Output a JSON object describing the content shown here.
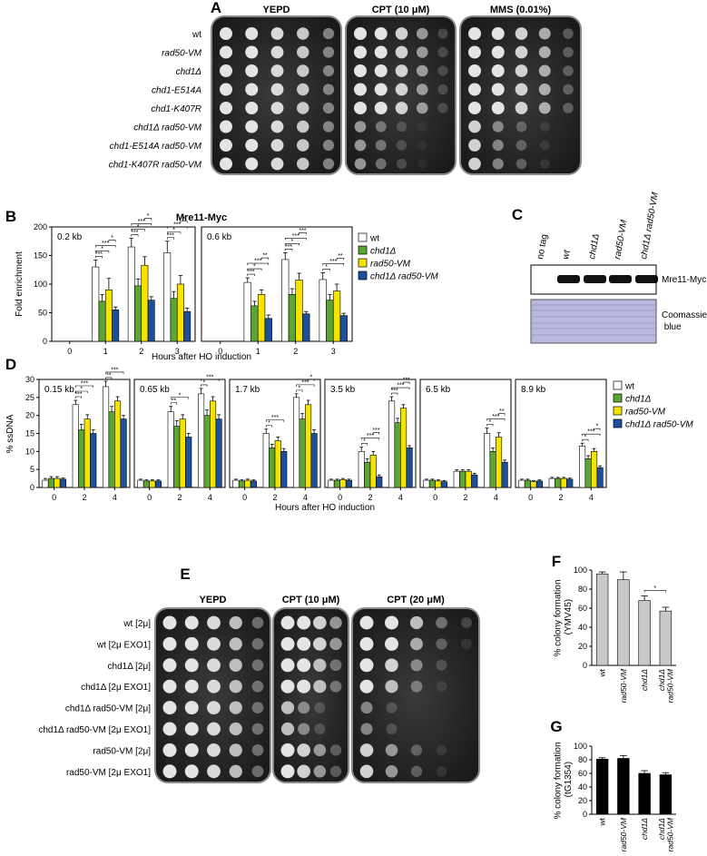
{
  "figure_labels": [
    "A",
    "B",
    "C",
    "D",
    "E",
    "F",
    "G"
  ],
  "spot_assay_a": {
    "conditions": [
      "YEPD",
      "CPT (10 μM)",
      "MMS (0.01%)"
    ],
    "strains": [
      "wt",
      "rad50-VM",
      "chd1Δ",
      "chd1-E514A",
      "chd1-K407R",
      "chd1Δ rad50-VM",
      "chd1-E514A rad50-VM",
      "chd1-K407R rad50-VM"
    ]
  },
  "blot_c": {
    "lanes": [
      "no tag",
      "wt",
      "chd1Δ",
      "rad50-VM",
      "chd1Δ rad50-VM"
    ],
    "bands": [
      "Mre11-Myc",
      "Coomassie blue"
    ]
  },
  "spot_assay_e": {
    "conditions": [
      "YEPD",
      "CPT (10 μM)",
      "CPT (20 μM)"
    ],
    "strains": [
      "wt [2μ]",
      "wt [2μ EXO1]",
      "chd1Δ [2μ]",
      "chd1Δ [2μ EXO1]",
      "chd1Δ rad50-VM [2μ]",
      "chd1Δ rad50-VM [2μ EXO1]",
      "rad50-VM [2μ]",
      "rad50-VM [2μ EXO1]"
    ]
  },
  "chart_data": [
    {
      "type": "bar",
      "title": "Mre11-Myc",
      "panel_label": "0.2 kb",
      "y_label": "Fold enrichment",
      "x_label": "Hours after HO induction",
      "categories": [
        "0",
        "1",
        "2",
        "3"
      ],
      "series": [
        {
          "name": "wt",
          "color": "#ffffff",
          "values": [
            null,
            130,
            165,
            155
          ],
          "errors": [
            null,
            12,
            15,
            20
          ]
        },
        {
          "name": "chd1Δ",
          "color": "#5ba532",
          "values": [
            null,
            70,
            97,
            75
          ],
          "errors": [
            null,
            12,
            12,
            12
          ]
        },
        {
          "name": "rad50-VM",
          "color": "#f6e400",
          "values": [
            null,
            90,
            133,
            100
          ],
          "errors": [
            null,
            20,
            15,
            15
          ]
        },
        {
          "name": "chd1Δ rad50-VM",
          "color": "#1d4f9c",
          "values": [
            null,
            55,
            72,
            52
          ],
          "errors": [
            null,
            5,
            6,
            6
          ]
        }
      ],
      "ylim": [
        0,
        200
      ],
      "yticks": [
        0,
        50,
        100,
        150,
        200
      ],
      "legend": "right",
      "significance": [
        {
          "category": 1,
          "series": [
            0,
            1
          ],
          "label": "***"
        },
        {
          "category": 1,
          "series": [
            0,
            2
          ],
          "label": "*"
        },
        {
          "category": 1,
          "series": [
            0,
            3
          ],
          "label": "***"
        },
        {
          "category": 1,
          "series": [
            2,
            3
          ],
          "label": "*"
        },
        {
          "category": 2,
          "series": [
            0,
            1
          ],
          "label": "***"
        },
        {
          "category": 2,
          "series": [
            0,
            2
          ],
          "label": "*"
        },
        {
          "category": 2,
          "series": [
            0,
            3
          ],
          "label": "***"
        },
        {
          "category": 2,
          "series": [
            2,
            3
          ],
          "label": "*"
        },
        {
          "category": 3,
          "series": [
            0,
            1
          ],
          "label": "***"
        },
        {
          "category": 3,
          "series": [
            0,
            2
          ],
          "label": "*"
        },
        {
          "category": 3,
          "series": [
            0,
            3
          ],
          "label": "***"
        },
        {
          "category": 3,
          "series": [
            2,
            3
          ],
          "label": "*"
        }
      ]
    },
    {
      "type": "bar",
      "panel_label": "0.6 kb",
      "categories": [
        "0",
        "1",
        "2",
        "3"
      ],
      "series": [
        {
          "color": "#ffffff",
          "values": [
            null,
            103,
            143,
            108
          ],
          "errors": [
            null,
            8,
            12,
            12
          ]
        },
        {
          "color": "#5ba532",
          "values": [
            null,
            62,
            82,
            72
          ],
          "errors": [
            null,
            8,
            10,
            10
          ]
        },
        {
          "color": "#f6e400",
          "values": [
            null,
            82,
            107,
            88
          ],
          "errors": [
            null,
            8,
            12,
            12
          ]
        },
        {
          "color": "#1d4f9c",
          "values": [
            null,
            40,
            48,
            45
          ],
          "errors": [
            null,
            6,
            4,
            4
          ]
        }
      ],
      "ylim": [
        0,
        200
      ],
      "significance": [
        {
          "category": 1,
          "series": [
            0,
            1
          ],
          "label": "***"
        },
        {
          "category": 1,
          "series": [
            0,
            2
          ],
          "label": "*"
        },
        {
          "category": 1,
          "series": [
            0,
            3
          ],
          "label": "***"
        },
        {
          "category": 1,
          "series": [
            2,
            3
          ],
          "label": "**"
        },
        {
          "category": 2,
          "series": [
            0,
            1
          ],
          "label": "***"
        },
        {
          "category": 2,
          "series": [
            0,
            2
          ],
          "label": "*"
        },
        {
          "category": 2,
          "series": [
            0,
            3
          ],
          "label": "***"
        },
        {
          "category": 2,
          "series": [
            2,
            3
          ],
          "label": "***"
        },
        {
          "category": 3,
          "series": [
            0,
            1
          ],
          "label": "*"
        },
        {
          "category": 3,
          "series": [
            0,
            3
          ],
          "label": "***"
        },
        {
          "category": 3,
          "series": [
            2,
            3
          ],
          "label": "**"
        }
      ]
    },
    {
      "type": "bar",
      "panel_label": "0.15 kb",
      "y_label": "% ssDNA",
      "x_label": "Hours after HO induction",
      "categories": [
        "0",
        "2",
        "4"
      ],
      "series": [
        {
          "name": "wt",
          "color": "#ffffff",
          "values": [
            2,
            23,
            28
          ],
          "errors": [
            0.5,
            1.2,
            1.5
          ]
        },
        {
          "name": "chd1Δ",
          "color": "#5ba532",
          "values": [
            2.5,
            16,
            21
          ],
          "errors": [
            0.5,
            1.5,
            1.5
          ]
        },
        {
          "name": "rad50-VM",
          "color": "#f6e400",
          "values": [
            2.5,
            19,
            24
          ],
          "errors": [
            0.5,
            1.2,
            1.2
          ]
        },
        {
          "name": "chd1Δ rad50-VM",
          "color": "#1d4f9c",
          "values": [
            2.3,
            15,
            19
          ],
          "errors": [
            0.3,
            1,
            1
          ]
        }
      ],
      "ylim": [
        0,
        30
      ],
      "yticks": [
        0,
        5,
        10,
        15,
        20,
        25,
        30
      ],
      "legend": "right",
      "significance": [
        {
          "category": 1,
          "series": [
            0,
            1
          ],
          "label": "***"
        },
        {
          "category": 1,
          "series": [
            0,
            2
          ],
          "label": "*"
        },
        {
          "category": 1,
          "series": [
            0,
            3
          ],
          "label": "***"
        },
        {
          "category": 2,
          "series": [
            0,
            1
          ],
          "label": "**"
        },
        {
          "category": 2,
          "series": [
            0,
            3
          ],
          "label": "***"
        }
      ]
    },
    {
      "type": "bar",
      "panel_label": "0.65 kb",
      "categories": [
        "0",
        "2",
        "4"
      ],
      "series": [
        {
          "color": "#ffffff",
          "values": [
            2,
            21,
            26
          ],
          "errors": [
            0.3,
            1.5,
            1.5
          ]
        },
        {
          "color": "#5ba532",
          "values": [
            1.8,
            17,
            20
          ],
          "errors": [
            0.3,
            1.5,
            1.5
          ]
        },
        {
          "color": "#f6e400",
          "values": [
            1.8,
            19,
            24
          ],
          "errors": [
            0.3,
            1.2,
            1.2
          ]
        },
        {
          "color": "#1d4f9c",
          "values": [
            1.8,
            14,
            19
          ],
          "errors": [
            0.3,
            1,
            1.2
          ]
        }
      ],
      "ylim": [
        0,
        30
      ],
      "significance": [
        {
          "category": 1,
          "series": [
            0,
            1
          ],
          "label": "**"
        },
        {
          "category": 1,
          "series": [
            0,
            3
          ],
          "label": "*"
        },
        {
          "category": 2,
          "series": [
            0,
            1
          ],
          "label": "*"
        },
        {
          "category": 2,
          "series": [
            0,
            3
          ],
          "label": "***"
        }
      ]
    },
    {
      "type": "bar",
      "panel_label": "1.7 kb",
      "categories": [
        "0",
        "2",
        "4"
      ],
      "series": [
        {
          "color": "#ffffff",
          "values": [
            2,
            15,
            25
          ],
          "errors": [
            0.3,
            1.2,
            1
          ]
        },
        {
          "color": "#5ba532",
          "values": [
            1.8,
            11,
            19
          ],
          "errors": [
            0.3,
            1,
            1.5
          ]
        },
        {
          "color": "#f6e400",
          "values": [
            2,
            13,
            23
          ],
          "errors": [
            0.3,
            1,
            1.2
          ]
        },
        {
          "color": "#1d4f9c",
          "values": [
            1.8,
            10,
            15
          ],
          "errors": [
            0.3,
            0.8,
            1
          ]
        }
      ],
      "ylim": [
        0,
        30
      ],
      "significance": [
        {
          "category": 1,
          "series": [
            0,
            1
          ],
          "label": "*"
        },
        {
          "category": 1,
          "series": [
            0,
            3
          ],
          "label": "***"
        },
        {
          "category": 2,
          "series": [
            0,
            1
          ],
          "label": "*"
        },
        {
          "category": 2,
          "series": [
            0,
            3
          ],
          "label": "***"
        },
        {
          "category": 2,
          "series": [
            2,
            3
          ],
          "label": "*"
        }
      ]
    },
    {
      "type": "bar",
      "panel_label": "3.5 kb",
      "categories": [
        "0",
        "2",
        "4"
      ],
      "series": [
        {
          "color": "#ffffff",
          "values": [
            2,
            10,
            24
          ],
          "errors": [
            0.3,
            1.2,
            1.2
          ]
        },
        {
          "color": "#5ba532",
          "values": [
            2,
            7,
            18
          ],
          "errors": [
            0.3,
            1,
            1.2
          ]
        },
        {
          "color": "#f6e400",
          "values": [
            2.2,
            9,
            22
          ],
          "errors": [
            0.3,
            1,
            1
          ]
        },
        {
          "color": "#1d4f9c",
          "values": [
            2,
            3,
            11
          ],
          "errors": [
            0.3,
            0.5,
            0.6
          ]
        }
      ],
      "ylim": [
        0,
        30
      ],
      "significance": [
        {
          "category": 1,
          "series": [
            0,
            1
          ],
          "label": "*"
        },
        {
          "category": 1,
          "series": [
            0,
            3
          ],
          "label": "***"
        },
        {
          "category": 1,
          "series": [
            2,
            3
          ],
          "label": "***"
        },
        {
          "category": 2,
          "series": [
            0,
            1
          ],
          "label": "***"
        },
        {
          "category": 2,
          "series": [
            0,
            3
          ],
          "label": "***"
        },
        {
          "category": 2,
          "series": [
            2,
            3
          ],
          "label": "***"
        }
      ]
    },
    {
      "type": "bar",
      "panel_label": "6.5 kb",
      "categories": [
        "0",
        "2",
        "4"
      ],
      "series": [
        {
          "color": "#ffffff",
          "values": [
            2,
            4.5,
            15
          ],
          "errors": [
            0.3,
            0.4,
            1.5
          ]
        },
        {
          "color": "#5ba532",
          "values": [
            2,
            4.5,
            10
          ],
          "errors": [
            0.3,
            0.4,
            1
          ]
        },
        {
          "color": "#f6e400",
          "values": [
            1.8,
            4.5,
            14
          ],
          "errors": [
            0.3,
            0.4,
            1.2
          ]
        },
        {
          "color": "#1d4f9c",
          "values": [
            1.6,
            3.5,
            7
          ],
          "errors": [
            0.3,
            0.4,
            0.6
          ]
        }
      ],
      "ylim": [
        0,
        30
      ],
      "significance": [
        {
          "category": 2,
          "series": [
            0,
            1
          ],
          "label": "*"
        },
        {
          "category": 2,
          "series": [
            0,
            3
          ],
          "label": "***"
        },
        {
          "category": 2,
          "series": [
            2,
            3
          ],
          "label": "**"
        }
      ]
    },
    {
      "type": "bar",
      "panel_label": "8.9 kb",
      "categories": [
        "0",
        "2",
        "4"
      ],
      "series": [
        {
          "color": "#ffffff",
          "values": [
            2,
            2.5,
            11.5
          ],
          "errors": [
            0.3,
            0.3,
            0.8
          ]
        },
        {
          "color": "#5ba532",
          "values": [
            2,
            2.5,
            8
          ],
          "errors": [
            0.3,
            0.3,
            0.8
          ]
        },
        {
          "color": "#f6e400",
          "values": [
            1.6,
            2.5,
            10
          ],
          "errors": [
            0.3,
            0.3,
            0.8
          ]
        },
        {
          "color": "#1d4f9c",
          "values": [
            1.8,
            2.3,
            5.5
          ],
          "errors": [
            0.3,
            0.3,
            0.5
          ]
        }
      ],
      "ylim": [
        0,
        30
      ],
      "significance": [
        {
          "category": 2,
          "series": [
            0,
            1
          ],
          "label": "*"
        },
        {
          "category": 2,
          "series": [
            0,
            3
          ],
          "label": "***"
        },
        {
          "category": 2,
          "series": [
            2,
            3
          ],
          "label": "*"
        }
      ]
    },
    {
      "type": "bar",
      "y_label": "% colony formation (YMV45)",
      "categories": [
        "wt",
        "rad50-VM",
        "chd1Δ",
        "chd1Δ rad50-VM"
      ],
      "series": [
        {
          "color": "#c8c8c8",
          "values": [
            96,
            90,
            68,
            57
          ],
          "errors": [
            2,
            8,
            5,
            4
          ]
        }
      ],
      "ylim": [
        0,
        100
      ],
      "yticks": [
        0,
        20,
        40,
        60,
        80,
        100
      ],
      "significance": [
        {
          "categories": [
            2,
            3
          ],
          "label": "*"
        }
      ]
    },
    {
      "type": "bar",
      "y_label": "% colony formation (tG1354)",
      "categories": [
        "wt",
        "rad50-VM",
        "chd1Δ",
        "chd1Δ rad50-VM"
      ],
      "series": [
        {
          "color": "#000000",
          "values": [
            81,
            82,
            60,
            58
          ],
          "errors": [
            2,
            4,
            4,
            3
          ]
        }
      ],
      "ylim": [
        0,
        100
      ],
      "yticks": [
        0,
        20,
        40,
        60,
        80,
        100
      ]
    }
  ]
}
